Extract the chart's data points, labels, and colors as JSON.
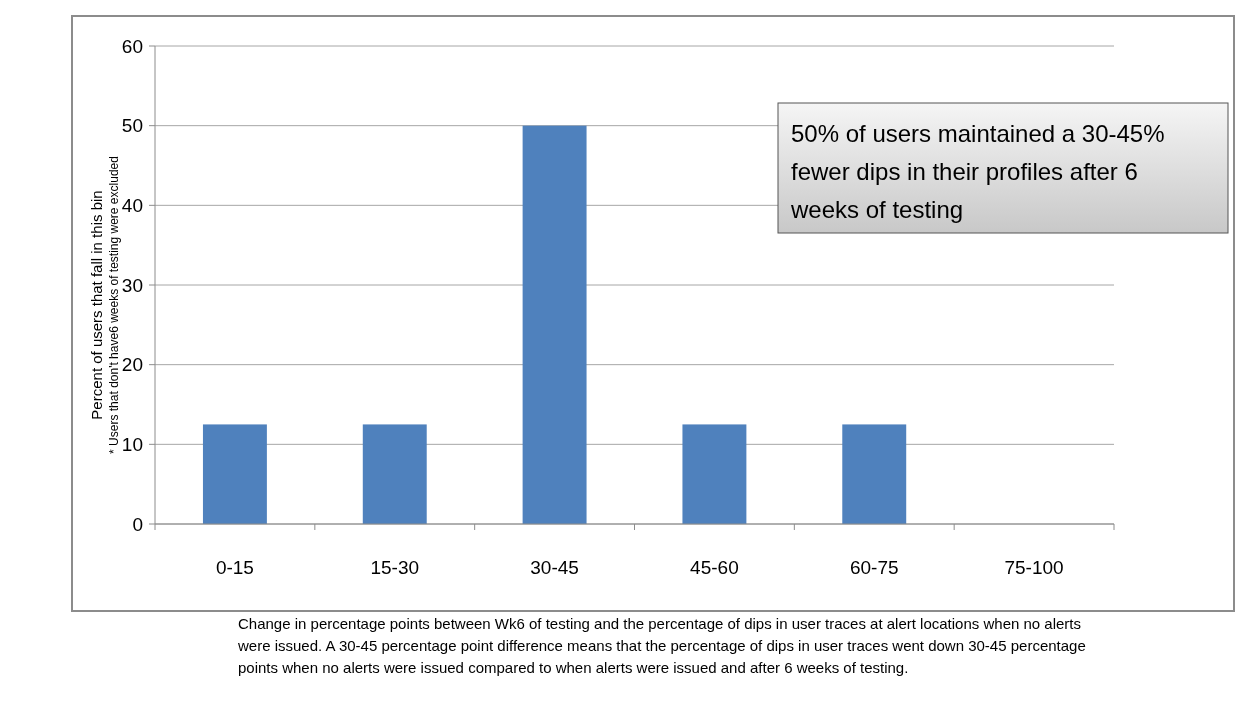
{
  "chart_data": {
    "type": "bar",
    "categories": [
      "0-15",
      "15-30",
      "30-45",
      "45-60",
      "60-75",
      "75-100"
    ],
    "values": [
      12.5,
      12.5,
      50,
      12.5,
      12.5,
      0
    ],
    "color": "#4f81bd",
    "ylim": [
      0,
      60
    ],
    "yticks": [
      0,
      10,
      20,
      30,
      40,
      50,
      60
    ],
    "grid": "y",
    "ylabel": "Percent of users that fall in this bin",
    "xlabel": "Change in percentage points between Wk6 of testing and the percentage of dips in user traces at alert locations when no alerts were issued. A 30-45 percentage point difference means that the percentage of dips in user traces went down 30-45 percentage points when no alerts were issued compared to when alerts were issued and after 6 weeks of testing.",
    "annotations": [
      "* Users that don't have6 weeks of testing were excluded",
      "50% of users maintained a 30-45% fewer dips in their profiles after 6 weeks of testing"
    ]
  }
}
